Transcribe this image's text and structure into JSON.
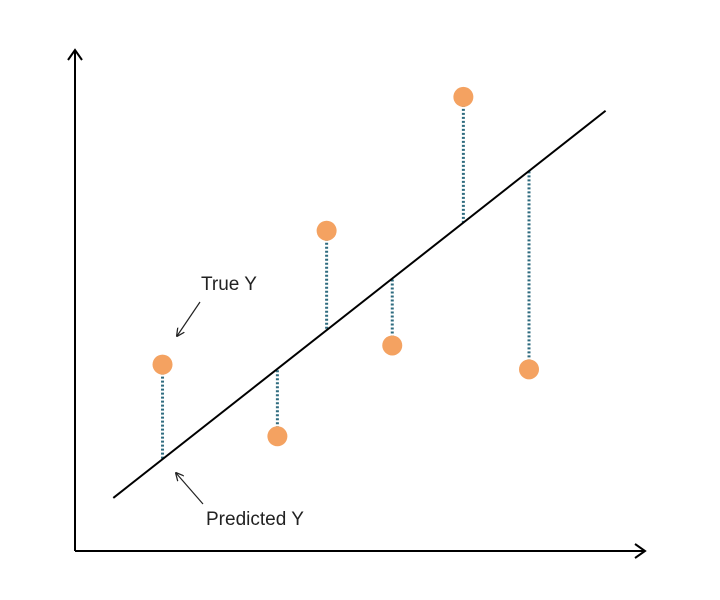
{
  "chart_data": {
    "type": "scatter",
    "title": "",
    "xlabel": "",
    "ylabel": "",
    "xlim": [
      0,
      10
    ],
    "ylim": [
      0,
      10
    ],
    "grid": false,
    "legend": "none",
    "regression_line": {
      "slope": 0.9,
      "intercept": 0.48,
      "x_start": 0.7,
      "x_end": 9.7
    },
    "points": [
      {
        "x": 1.6,
        "y": 3.9
      },
      {
        "x": 3.7,
        "y": 2.4
      },
      {
        "x": 4.6,
        "y": 6.7
      },
      {
        "x": 5.8,
        "y": 4.3
      },
      {
        "x": 7.1,
        "y": 9.5
      },
      {
        "x": 8.3,
        "y": 3.8
      }
    ],
    "annotations": {
      "true_y": "True Y",
      "predicted_y": "Predicted Y"
    },
    "colors": {
      "point": "#F4A261",
      "line": "#000000",
      "residual": "#2E6B7F",
      "axis": "#000000"
    }
  }
}
